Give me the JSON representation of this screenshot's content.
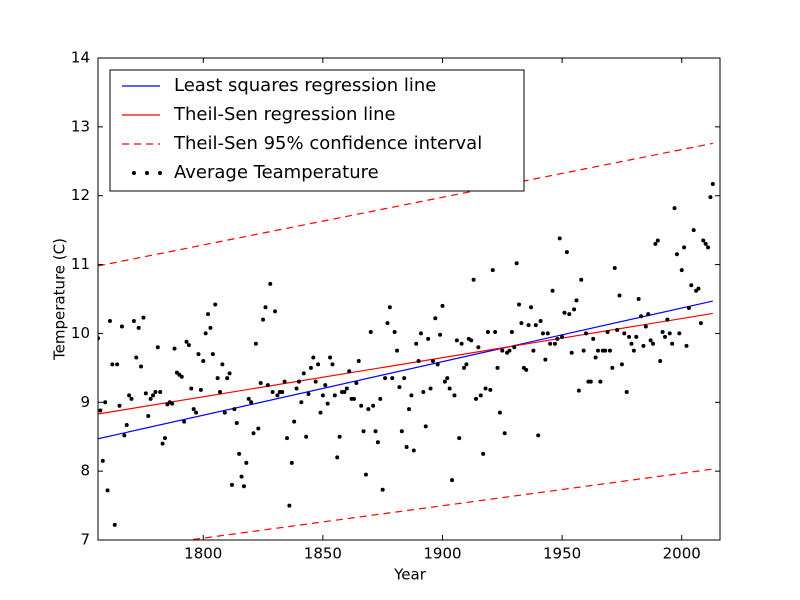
{
  "chart_data": {
    "type": "line",
    "xlabel": "Year",
    "ylabel": "Temperature (C)",
    "xlim": [
      1756,
      2016
    ],
    "ylim": [
      7,
      14
    ],
    "xticks": [
      1800,
      1850,
      1900,
      1950,
      2000
    ],
    "yticks": [
      7,
      8,
      9,
      10,
      11,
      12,
      13,
      14
    ],
    "legend": "upper left",
    "series": [
      {
        "name": "Least squares regression line",
        "color": "#0000ff",
        "style": "solid",
        "x": [
          1756,
          2013
        ],
        "values": [
          8.47,
          10.47
        ]
      },
      {
        "name": "Theil-Sen regression line",
        "color": "#ff0000",
        "style": "solid",
        "x": [
          1756,
          2013
        ],
        "values": [
          8.83,
          10.29
        ]
      },
      {
        "name": "Theil-Sen 95% confidence interval",
        "color": "#ff0000",
        "style": "dashed",
        "x": [
          1756,
          2013
        ],
        "upper": [
          10.98,
          12.76
        ],
        "lower": [
          6.82,
          8.03
        ]
      },
      {
        "name": "Average Teamperature",
        "color": "#000000",
        "style": "markers",
        "x": [
          1756,
          1757,
          1758,
          1759,
          1760,
          1761,
          1762,
          1763,
          1764,
          1765,
          1766,
          1767,
          1768,
          1769,
          1770,
          1771,
          1772,
          1773,
          1774,
          1775,
          1776,
          1777,
          1778,
          1779,
          1780,
          1781,
          1782,
          1783,
          1784,
          1785,
          1786,
          1787,
          1788,
          1789,
          1790,
          1791,
          1792,
          1793,
          1794,
          1795,
          1796,
          1797,
          1798,
          1799,
          1800,
          1801,
          1802,
          1803,
          1804,
          1805,
          1806,
          1807,
          1808,
          1809,
          1810,
          1811,
          1812,
          1813,
          1814,
          1815,
          1816,
          1817,
          1818,
          1819,
          1820,
          1821,
          1822,
          1823,
          1824,
          1825,
          1826,
          1827,
          1828,
          1829,
          1830,
          1831,
          1832,
          1833,
          1834,
          1835,
          1836,
          1837,
          1838,
          1839,
          1840,
          1841,
          1842,
          1843,
          1844,
          1845,
          1846,
          1847,
          1848,
          1849,
          1850,
          1851,
          1852,
          1853,
          1854,
          1855,
          1856,
          1857,
          1858,
          1859,
          1860,
          1861,
          1862,
          1863,
          1864,
          1865,
          1866,
          1867,
          1868,
          1869,
          1870,
          1871,
          1872,
          1873,
          1874,
          1875,
          1876,
          1877,
          1878,
          1879,
          1880,
          1881,
          1882,
          1883,
          1884,
          1885,
          1886,
          1887,
          1888,
          1889,
          1890,
          1891,
          1892,
          1893,
          1894,
          1895,
          1896,
          1897,
          1898,
          1899,
          1900,
          1901,
          1902,
          1903,
          1904,
          1905,
          1906,
          1907,
          1908,
          1909,
          1910,
          1911,
          1912,
          1913,
          1914,
          1915,
          1916,
          1917,
          1918,
          1919,
          1920,
          1921,
          1922,
          1923,
          1924,
          1925,
          1926,
          1927,
          1928,
          1929,
          1930,
          1931,
          1932,
          1933,
          1934,
          1935,
          1936,
          1937,
          1938,
          1939,
          1940,
          1941,
          1942,
          1943,
          1944,
          1945,
          1946,
          1947,
          1948,
          1949,
          1950,
          1951,
          1952,
          1953,
          1954,
          1955,
          1956,
          1957,
          1958,
          1959,
          1960,
          1961,
          1962,
          1963,
          1964,
          1965,
          1966,
          1967,
          1968,
          1969,
          1970,
          1971,
          1972,
          1973,
          1974,
          1975,
          1976,
          1977,
          1978,
          1979,
          1980,
          1981,
          1982,
          1983,
          1984,
          1985,
          1986,
          1987,
          1988,
          1989,
          1990,
          1991,
          1992,
          1993,
          1994,
          1995,
          1996,
          1997,
          1998,
          1999,
          2000,
          2001,
          2002,
          2003,
          2004,
          2005,
          2006,
          2007,
          2008,
          2009,
          2010,
          2011,
          2012,
          2013
        ],
        "values": [
          9.93,
          8.88,
          8.15,
          9.0,
          7.72,
          10.18,
          9.55,
          7.22,
          9.55,
          8.95,
          10.1,
          8.52,
          8.67,
          9.1,
          9.05,
          10.18,
          9.65,
          10.08,
          9.52,
          10.23,
          9.13,
          8.8,
          9.05,
          9.1,
          9.15,
          9.8,
          9.15,
          8.4,
          8.48,
          8.97,
          9.0,
          8.98,
          9.78,
          9.43,
          9.4,
          9.37,
          8.72,
          9.88,
          9.83,
          9.2,
          8.9,
          8.85,
          9.7,
          9.18,
          9.6,
          10.0,
          10.28,
          10.08,
          9.7,
          10.42,
          9.35,
          9.15,
          9.55,
          8.85,
          9.35,
          9.42,
          7.8,
          8.9,
          8.7,
          8.25,
          7.92,
          7.78,
          8.12,
          9.05,
          9.0,
          8.55,
          9.85,
          8.62,
          9.28,
          10.2,
          10.38,
          9.25,
          10.72,
          9.15,
          10.32,
          9.1,
          9.15,
          9.15,
          9.3,
          8.48,
          7.5,
          8.12,
          8.72,
          9.2,
          9.3,
          9.0,
          9.42,
          8.5,
          9.12,
          9.5,
          9.65,
          9.3,
          9.55,
          8.85,
          9.1,
          9.25,
          8.98,
          9.65,
          9.55,
          9.1,
          8.2,
          8.5,
          9.15,
          9.15,
          9.2,
          9.45,
          9.05,
          9.05,
          9.28,
          9.6,
          8.95,
          8.58,
          7.95,
          8.9,
          10.02,
          8.95,
          8.58,
          8.42,
          9.05,
          7.73,
          9.35,
          10.15,
          10.38,
          9.35,
          10.02,
          9.75,
          9.22,
          8.58,
          9.35,
          8.35,
          8.9,
          9.1,
          8.3,
          9.85,
          9.6,
          10.0,
          9.15,
          8.65,
          9.92,
          9.2,
          9.6,
          10.22,
          9.55,
          9.98,
          10.4,
          9.3,
          9.35,
          9.2,
          7.87,
          9.1,
          9.9,
          8.48,
          9.85,
          9.5,
          9.55,
          9.92,
          9.9,
          10.78,
          9.05,
          9.8,
          9.1,
          8.25,
          9.2,
          10.02,
          9.18,
          10.92,
          10.02,
          9.5,
          8.85,
          9.75,
          8.55,
          9.72,
          9.75,
          10.02,
          9.8,
          11.02,
          10.42,
          10.15,
          9.5,
          9.47,
          10.12,
          10.38,
          9.75,
          10.12,
          8.52,
          10.18,
          10.0,
          9.62,
          10.0,
          9.85,
          10.62,
          9.85,
          9.92,
          11.38,
          9.95,
          10.3,
          11.18,
          10.28,
          9.72,
          10.35,
          10.48,
          9.17,
          10.78,
          9.75,
          10.0,
          9.3,
          9.3,
          9.92,
          9.65,
          9.75,
          9.3,
          9.75,
          9.75,
          10.02,
          9.75,
          9.5,
          10.95,
          10.05,
          10.55,
          9.55,
          10.0,
          9.15,
          9.95,
          9.85,
          9.75,
          9.95,
          10.5,
          10.25,
          9.82,
          10.1,
          10.28,
          9.9,
          9.85,
          11.3,
          11.35,
          9.6,
          10.02,
          9.95,
          10.2,
          10.0,
          9.85,
          11.82,
          11.15,
          10.0,
          10.92,
          11.25,
          9.82,
          10.37,
          10.7,
          11.5,
          10.62,
          10.65,
          10.15,
          11.35,
          11.3,
          11.25,
          11.98,
          12.17
        ]
      }
    ]
  }
}
